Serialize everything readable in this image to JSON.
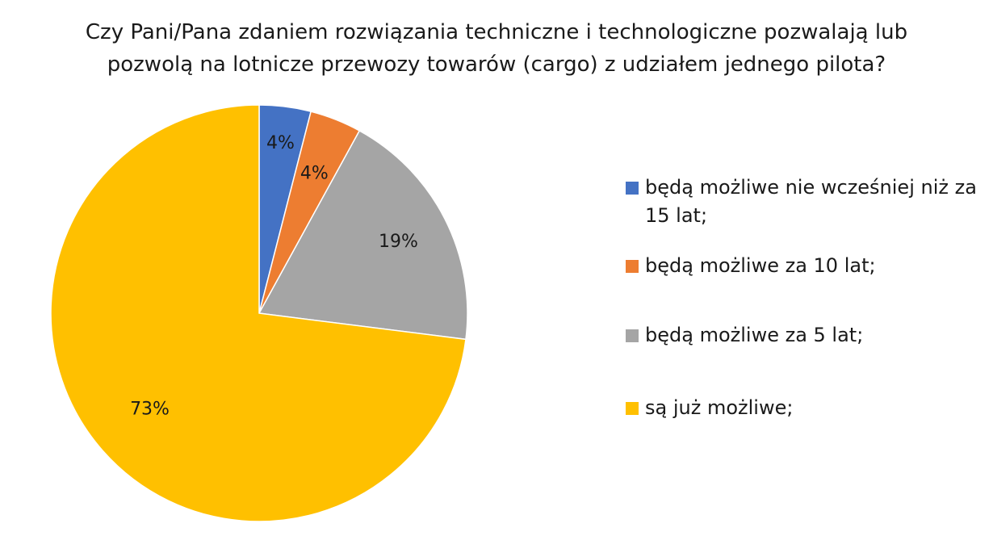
{
  "title_lines": [
    "Czy Pani/Pana zdaniem rozwiązania techniczne i technologiczne pozwalają lub",
    "pozwolą na lotnicze przewozy towarów (cargo)  z udziałem jednego pilota?"
  ],
  "chart_data": {
    "type": "pie",
    "title": "Czy Pani/Pana zdaniem rozwiązania techniczne i technologiczne pozwalają lub pozwolą na lotnicze przewozy towarów (cargo)  z udziałem jednego pilota?",
    "start_angle": "12 o'clock, clockwise",
    "legend_position": "right",
    "slices": [
      {
        "label": "będą możliwe nie wcześniej niż za 15 lat;",
        "value": 4,
        "data_label": "4%",
        "color": "#4472C4"
      },
      {
        "label": "będą możliwe za 10 lat;",
        "value": 4,
        "data_label": "4%",
        "color": "#ED7D31"
      },
      {
        "label": "będą możliwe za 5 lat;",
        "value": 19,
        "data_label": "19%",
        "color": "#A5A5A5"
      },
      {
        "label": "są już możliwe;",
        "value": 73,
        "data_label": "73%",
        "color": "#FFC000"
      }
    ]
  }
}
